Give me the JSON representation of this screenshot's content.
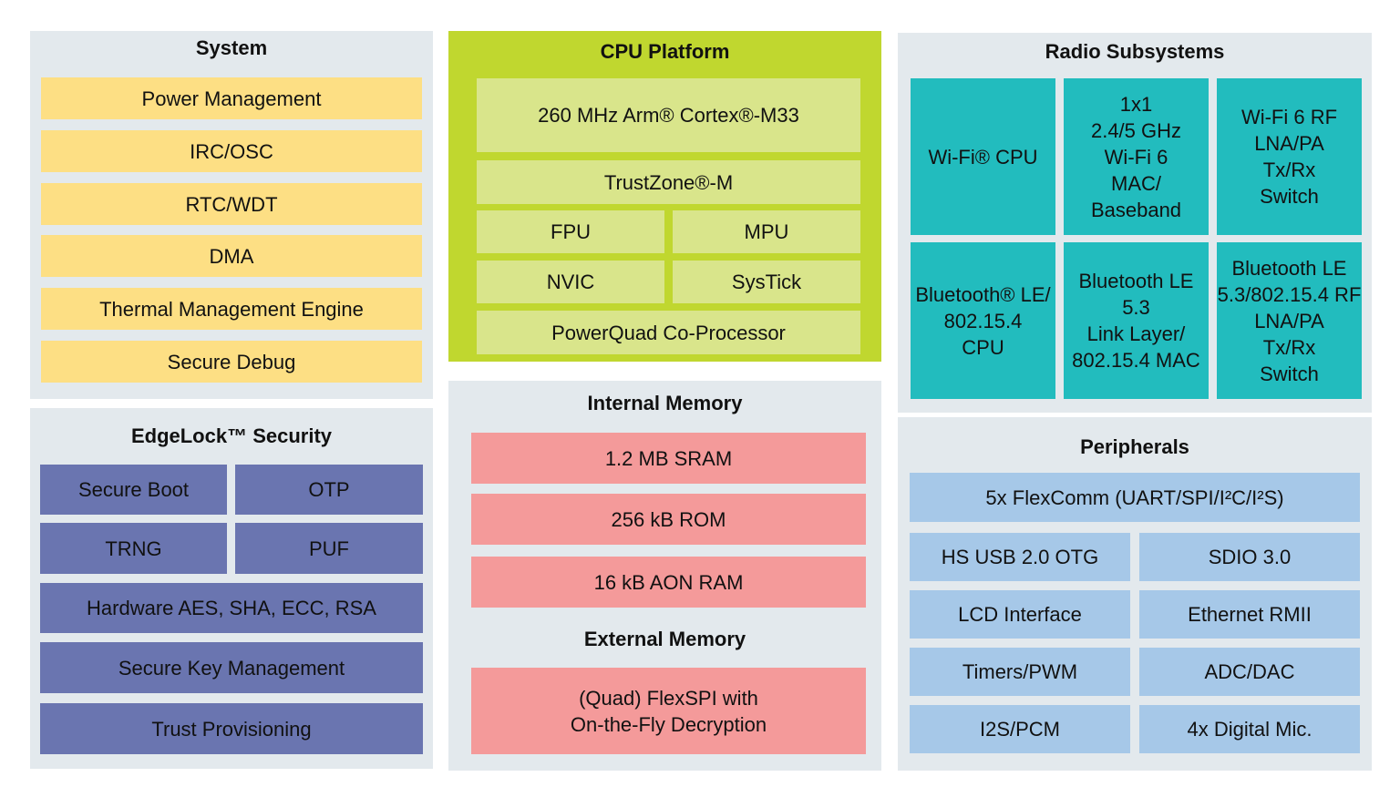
{
  "colors": {
    "panel": "#e3e9ed",
    "system": "#fddf84",
    "cpu_panel": "#c0d72f",
    "cpu_block": "#d9e58b",
    "radio": "#22bcbe",
    "security": "#6a75b0",
    "memory": "#f49a9a",
    "peripherals": "#a6c8e8"
  },
  "system": {
    "title": "System",
    "items": [
      "Power Management",
      "IRC/OSC",
      "RTC/WDT",
      "DMA",
      "Thermal Management Engine",
      "Secure Debug"
    ]
  },
  "cpu": {
    "title": "CPU Platform",
    "items": [
      "260 MHz Arm® Cortex®-M33",
      "TrustZone®-M",
      "FPU",
      "MPU",
      "NVIC",
      "SysTick",
      "PowerQuad Co-Processor"
    ]
  },
  "radio": {
    "title": "Radio Subsystems",
    "items": [
      "Wi-Fi® CPU",
      "1x1\n2.4/5 GHz\nWi-Fi 6\nMAC/\nBaseband",
      "Wi-Fi 6 RF\nLNA/PA\nTx/Rx\nSwitch",
      "Bluetooth® LE/\n802.15.4\nCPU",
      "Bluetooth LE\n5.3\nLink Layer/\n802.15.4 MAC",
      "Bluetooth LE\n5.3/802.15.4 RF\nLNA/PA\nTx/Rx\nSwitch"
    ]
  },
  "security": {
    "title": "EdgeLock™ Security",
    "items": [
      "Secure Boot",
      "OTP",
      "TRNG",
      "PUF",
      "Hardware AES, SHA, ECC, RSA",
      "Secure Key Management",
      "Trust Provisioning"
    ]
  },
  "memory": {
    "title": "Internal Memory",
    "items": [
      "1.2 MB SRAM",
      "256 kB ROM",
      "16 kB AON RAM"
    ],
    "external_title": "External Memory",
    "external_items": [
      "(Quad) FlexSPI with\nOn-the-Fly Decryption"
    ]
  },
  "peripherals": {
    "title": "Peripherals",
    "items": [
      "5x FlexComm (UART/SPI/I²C/I²S)",
      "HS USB 2.0 OTG",
      "SDIO 3.0",
      "LCD Interface",
      "Ethernet RMII",
      "Timers/PWM",
      "ADC/DAC",
      "I2S/PCM",
      "4x Digital Mic."
    ]
  }
}
